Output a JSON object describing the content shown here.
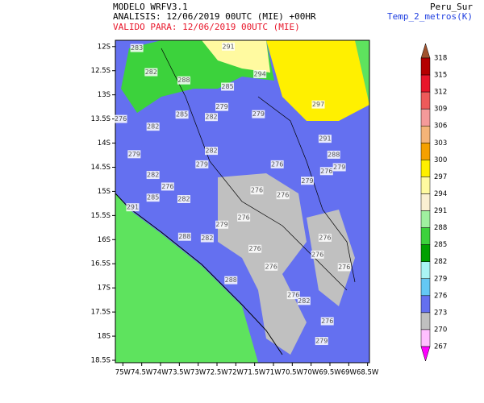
{
  "header": {
    "model": "MODELO WRFV3.1",
    "analysis": "ANALISIS: 12/06/2019 00UTC (MIE) +00HR",
    "valid": "VALIDO PARA: 12/06/2019 00UTC (MIE)",
    "domain": "Peru_Sur",
    "variable": "Temp_2_metros(K)"
  },
  "map": {
    "xlim": [
      -75.2,
      -68.45
    ],
    "ylim": [
      -18.55,
      -11.87
    ],
    "xticks": [
      {
        "value": -75,
        "label": "75W"
      },
      {
        "value": -74.5,
        "label": "74.5W"
      },
      {
        "value": -74,
        "label": "74W"
      },
      {
        "value": -73.5,
        "label": "73.5W"
      },
      {
        "value": -73,
        "label": "73W"
      },
      {
        "value": -72.5,
        "label": "72.5W"
      },
      {
        "value": -72,
        "label": "72W"
      },
      {
        "value": -71.5,
        "label": "71.5W"
      },
      {
        "value": -71,
        "label": "71W"
      },
      {
        "value": -70.5,
        "label": "70.5W"
      },
      {
        "value": -70,
        "label": "70W"
      },
      {
        "value": -69.5,
        "label": "69.5W"
      },
      {
        "value": -69,
        "label": "69W"
      },
      {
        "value": -68.5,
        "label": "68.5W"
      }
    ],
    "yticks": [
      {
        "value": -12,
        "label": "12S"
      },
      {
        "value": -12.5,
        "label": "12.5S"
      },
      {
        "value": -13,
        "label": "13S"
      },
      {
        "value": -13.5,
        "label": "13.5S"
      },
      {
        "value": -14,
        "label": "14S"
      },
      {
        "value": -14.5,
        "label": "14.5S"
      },
      {
        "value": -15,
        "label": "15S"
      },
      {
        "value": -15.5,
        "label": "15.5S"
      },
      {
        "value": -16,
        "label": "16S"
      },
      {
        "value": -16.5,
        "label": "16.5S"
      },
      {
        "value": -17,
        "label": "17S"
      },
      {
        "value": -17.5,
        "label": "17.5S"
      },
      {
        "value": -18,
        "label": "18S"
      },
      {
        "value": -18.5,
        "label": "18.5S"
      }
    ],
    "contour_labels": [
      {
        "label": "283",
        "lon": -74.63,
        "lat": -12.03
      },
      {
        "label": "291",
        "lon": -72.2,
        "lat": -12.0
      },
      {
        "label": "294",
        "lon": -71.36,
        "lat": -12.57
      },
      {
        "label": "288",
        "lon": -73.38,
        "lat": -12.7
      },
      {
        "label": "285",
        "lon": -72.22,
        "lat": -12.83
      },
      {
        "label": "282",
        "lon": -74.25,
        "lat": -12.53
      },
      {
        "label": "276",
        "lon": -75.06,
        "lat": -13.5
      },
      {
        "label": "282",
        "lon": -74.2,
        "lat": -13.66
      },
      {
        "label": "285",
        "lon": -73.43,
        "lat": -13.41
      },
      {
        "label": "279",
        "lon": -72.37,
        "lat": -13.25
      },
      {
        "label": "279",
        "lon": -71.4,
        "lat": -13.4
      },
      {
        "label": "282",
        "lon": -72.65,
        "lat": -13.46
      },
      {
        "label": "297",
        "lon": -69.81,
        "lat": -13.2
      },
      {
        "label": "279",
        "lon": -74.7,
        "lat": -14.23
      },
      {
        "label": "282",
        "lon": -72.65,
        "lat": -14.16
      },
      {
        "label": "282",
        "lon": -74.2,
        "lat": -14.66
      },
      {
        "label": "279",
        "lon": -72.9,
        "lat": -14.44
      },
      {
        "label": "276",
        "lon": -70.9,
        "lat": -14.44
      },
      {
        "label": "279",
        "lon": -70.1,
        "lat": -14.78
      },
      {
        "label": "291",
        "lon": -69.63,
        "lat": -13.91
      },
      {
        "label": "288",
        "lon": -69.4,
        "lat": -14.24
      },
      {
        "label": "276",
        "lon": -69.59,
        "lat": -14.58
      },
      {
        "label": "279",
        "lon": -69.25,
        "lat": -14.5
      },
      {
        "label": "276",
        "lon": -73.81,
        "lat": -14.9
      },
      {
        "label": "285",
        "lon": -74.2,
        "lat": -15.13
      },
      {
        "label": "282",
        "lon": -73.38,
        "lat": -15.16
      },
      {
        "label": "276",
        "lon": -71.44,
        "lat": -14.98
      },
      {
        "label": "276",
        "lon": -70.75,
        "lat": -15.08
      },
      {
        "label": "291",
        "lon": -74.74,
        "lat": -15.33
      },
      {
        "label": "279",
        "lon": -72.37,
        "lat": -15.69
      },
      {
        "label": "276",
        "lon": -71.79,
        "lat": -15.54
      },
      {
        "label": "282",
        "lon": -72.76,
        "lat": -15.97
      },
      {
        "label": "288",
        "lon": -73.36,
        "lat": -15.94
      },
      {
        "label": "276",
        "lon": -69.63,
        "lat": -15.96
      },
      {
        "label": "276",
        "lon": -71.49,
        "lat": -16.19
      },
      {
        "label": "276",
        "lon": -69.83,
        "lat": -16.31
      },
      {
        "label": "276",
        "lon": -69.12,
        "lat": -16.57
      },
      {
        "label": "276",
        "lon": -71.06,
        "lat": -16.56
      },
      {
        "label": "288",
        "lon": -72.13,
        "lat": -16.84
      },
      {
        "label": "276",
        "lon": -70.47,
        "lat": -17.15
      },
      {
        "label": "282",
        "lon": -70.19,
        "lat": -17.27
      },
      {
        "label": "276",
        "lon": -69.57,
        "lat": -17.69
      },
      {
        "label": "279",
        "lon": -69.72,
        "lat": -18.1
      }
    ]
  },
  "colorbar": {
    "levels": [
      318,
      315,
      312,
      309,
      306,
      303,
      300,
      297,
      294,
      291,
      288,
      285,
      282,
      279,
      276,
      273,
      270,
      267
    ],
    "colors": [
      "#a0522d",
      "#b40000",
      "#e8162a",
      "#ee5a5a",
      "#f59a9a",
      "#f5b478",
      "#f5a000",
      "#fff000",
      "#fffaa0",
      "#faf0d2",
      "#a0f0a0",
      "#3cd23c",
      "#00a000",
      "#aaf5f5",
      "#64c8f5",
      "#6470f0",
      "#c0c0c0",
      "#ffc0ff",
      "#ff00ff",
      "#a000c0"
    ]
  }
}
